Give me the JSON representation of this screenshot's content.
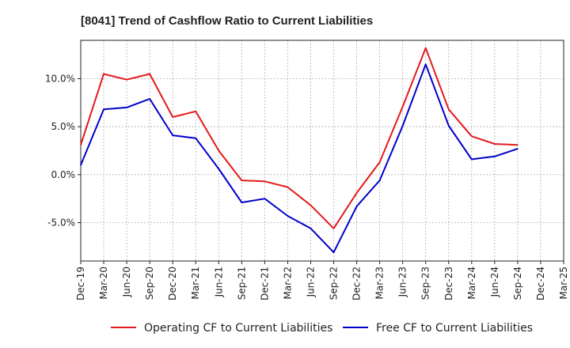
{
  "chart_data": {
    "type": "line",
    "title": "[8041]  Trend of Cashflow Ratio to Current Liabilities",
    "xlabel": "",
    "ylabel": "",
    "ylim": [
      -9.0,
      14.0
    ],
    "yticks": [
      -5.0,
      0.0,
      5.0,
      10.0
    ],
    "ytick_labels": [
      "-5.0%",
      "0.0%",
      "5.0%",
      "10.0%"
    ],
    "grid": true,
    "legend_position": "bottom",
    "x": [
      "Dec-19",
      "Mar-20",
      "Jun-20",
      "Sep-20",
      "Dec-20",
      "Mar-21",
      "Jun-21",
      "Sep-21",
      "Dec-21",
      "Mar-22",
      "Jun-22",
      "Sep-22",
      "Dec-22",
      "Mar-23",
      "Jun-23",
      "Sep-23",
      "Dec-23",
      "Mar-24",
      "Jun-24",
      "Sep-24",
      "Dec-24",
      "Mar-25"
    ],
    "xtick_labels": [
      "Dec-19",
      "Mar-20",
      "Jun-20",
      "Sep-20",
      "Dec-20",
      "Mar-21",
      "Jun-21",
      "Sep-21",
      "Dec-21",
      "Mar-22",
      "Jun-22",
      "Sep-22",
      "Dec-22",
      "Mar-23",
      "Jun-23",
      "Sep-23",
      "Dec-23",
      "Mar-24",
      "Jun-24",
      "Sep-24",
      "Dec-24",
      "Mar-25"
    ],
    "series": [
      {
        "name": "Operating CF to Current Liabilities",
        "color": "#e41a1c",
        "values": [
          3.1,
          10.5,
          9.9,
          10.5,
          6.0,
          6.6,
          2.5,
          -0.6,
          -0.7,
          -1.3,
          -3.2,
          -5.6,
          -1.9,
          1.3,
          7.1,
          13.2,
          6.8,
          4.0,
          3.2,
          3.1,
          null,
          null
        ]
      },
      {
        "name": "Free CF to Current Liabilities",
        "color": "#0000cc",
        "values": [
          1.0,
          6.8,
          7.0,
          7.9,
          4.1,
          3.8,
          0.6,
          -2.9,
          -2.5,
          -4.3,
          -5.6,
          -8.1,
          -3.3,
          -0.6,
          5.1,
          11.5,
          5.1,
          1.6,
          1.9,
          2.7,
          null,
          null
        ]
      }
    ]
  }
}
